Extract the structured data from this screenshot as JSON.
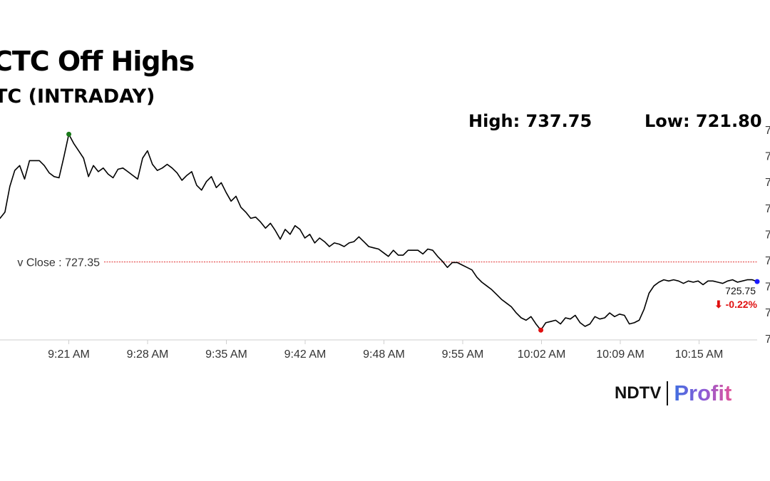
{
  "header": {
    "title": "CTC Off Highs",
    "subtitle": "TC (INTRADAY)"
  },
  "stats": {
    "high_label": "High: 737.75",
    "low_label": "Low: 721.80"
  },
  "brand": {
    "ndtv": "NDTV",
    "profit": "Profit"
  },
  "colors": {
    "line": "#000000",
    "high_marker": "#1a7a1a",
    "low_marker": "#e01010",
    "last_marker": "#1a1aff",
    "prev_close_line": "#e03030",
    "change_text": "#e01010"
  },
  "chart_data": {
    "type": "line",
    "title": "CTC Off Highs",
    "subtitle": "TC (INTRADAY)",
    "xlabel": "",
    "ylabel": "",
    "x_tick_labels": [
      "AM",
      "9:21 AM",
      "9:28 AM",
      "9:35 AM",
      "9:42 AM",
      "9:48 AM",
      "9:55 AM",
      "10:02 AM",
      "10:09 AM",
      "10:15 AM"
    ],
    "y_tick_labels": [
      "7",
      "7",
      "7",
      "7",
      "7",
      "7",
      "7",
      "7",
      "7"
    ],
    "ylim": [
      721.0,
      738.7
    ],
    "grid": false,
    "prev_close": 727.35,
    "prev_close_label": "v Close : 727.35",
    "high": 737.75,
    "low": 721.8,
    "last_value_label": "725.75",
    "change_label": "⬇ -0.22%",
    "series": [
      {
        "values": [
          730.9,
          731.4,
          733.5,
          734.8,
          735.2,
          734.1,
          735.6,
          735.6,
          735.6,
          735.2,
          734.6,
          734.3,
          734.2,
          735.9,
          737.75,
          737.0,
          736.4,
          735.8,
          734.3,
          735.2,
          734.7,
          735.0,
          734.5,
          734.2,
          734.9,
          735.0,
          734.7,
          734.4,
          734.1,
          735.8,
          736.4,
          735.3,
          734.8,
          735.0,
          735.3,
          735.0,
          734.6,
          734.0,
          734.4,
          734.7,
          733.6,
          733.2,
          733.9,
          734.3,
          733.4,
          733.8,
          733.0,
          732.3,
          732.7,
          731.8,
          731.4,
          730.9,
          731.0,
          730.6,
          730.1,
          730.5,
          729.9,
          729.2,
          730.0,
          729.6,
          730.3,
          730.0,
          729.3,
          729.6,
          728.9,
          729.3,
          729.0,
          728.6,
          728.9,
          728.8,
          728.6,
          728.9,
          729.0,
          729.4,
          729.0,
          728.6,
          728.5,
          728.4,
          728.1,
          727.8,
          728.3,
          727.9,
          727.9,
          728.3,
          728.3,
          728.3,
          728.0,
          728.4,
          728.3,
          727.8,
          727.4,
          726.9,
          727.3,
          727.3,
          727.1,
          726.9,
          726.7,
          726.1,
          725.7,
          725.4,
          725.1,
          724.7,
          724.3,
          724.0,
          723.7,
          723.2,
          722.8,
          722.6,
          722.9,
          722.3,
          721.8,
          722.4,
          722.5,
          722.6,
          722.3,
          722.8,
          722.7,
          723.0,
          722.4,
          722.1,
          722.3,
          722.9,
          722.7,
          722.8,
          723.2,
          722.9,
          723.1,
          723.0,
          722.3,
          722.4,
          722.6,
          723.5,
          724.8,
          725.4,
          725.7,
          725.9,
          725.8,
          725.9,
          725.8,
          725.6,
          725.8,
          725.7,
          725.8,
          725.5,
          725.8,
          725.8,
          725.7,
          725.6,
          725.8,
          725.9,
          725.7,
          725.8,
          725.9,
          725.9,
          725.75
        ]
      }
    ]
  }
}
